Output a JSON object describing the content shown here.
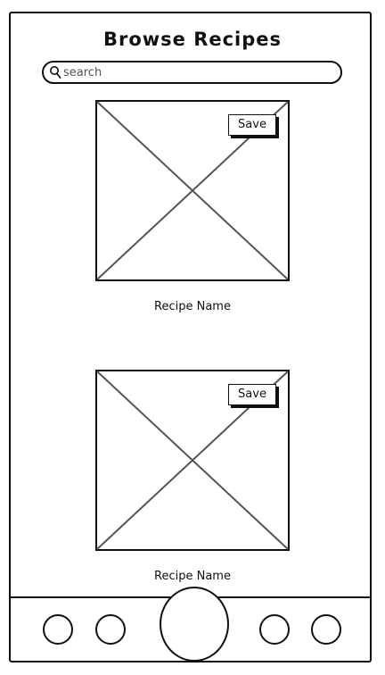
{
  "header": {
    "title": "Browse Recipes"
  },
  "search": {
    "placeholder": "search",
    "value": ""
  },
  "recipes": [
    {
      "name": "Recipe Name",
      "save_label": "Save"
    },
    {
      "name": "Recipe Name",
      "save_label": "Save"
    }
  ],
  "bottom_nav": {
    "items": [
      "nav-item",
      "nav-item",
      "primary-action",
      "nav-item",
      "nav-item"
    ]
  },
  "colors": {
    "ink": "#111111",
    "background": "#ffffff"
  }
}
